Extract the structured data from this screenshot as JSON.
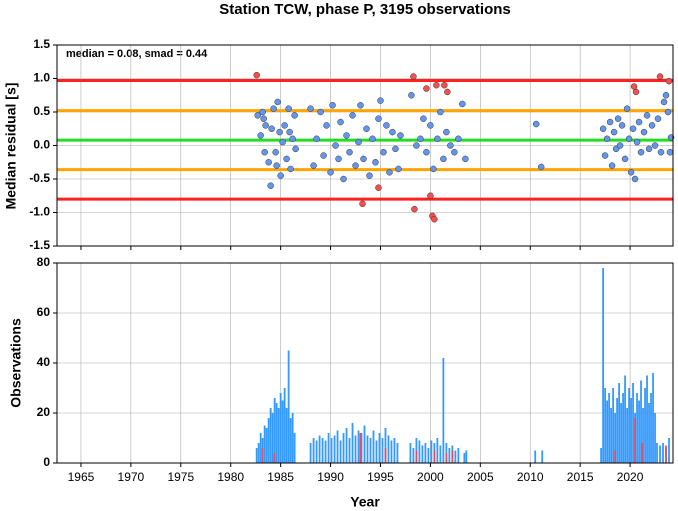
{
  "chart_data": [
    {
      "type": "scatter",
      "title": "Station TCW, phase P, 3195 observations",
      "annotation": "median = 0.08, smad = 0.44",
      "y_label": "Median residual [s]",
      "xlim": [
        1962.6,
        2024.3
      ],
      "ylim": [
        -1.5,
        1.5
      ],
      "xticks": [
        1965,
        1970,
        1975,
        1980,
        1985,
        1990,
        1995,
        2000,
        2005,
        2010,
        2015,
        2020
      ],
      "yticks": [
        -1.5,
        {
          "value": -1,
          "label": "-1.0"
        },
        -0.5,
        {
          "value": 0,
          "label": "0.0"
        },
        0.5,
        {
          "value": 1,
          "label": "1.0"
        },
        1.5
      ],
      "grid": true,
      "hlines": [
        {
          "value": 0.97,
          "color": "#ff2020"
        },
        {
          "value": 0.52,
          "color": "#ffa500"
        },
        {
          "value": 0.08,
          "color": "#22dd22"
        },
        {
          "value": -0.36,
          "color": "#ffa500"
        },
        {
          "value": -0.8,
          "color": "#ff2020"
        }
      ],
      "series": [
        {
          "color": "#6495ed",
          "x": [
            1982.7,
            1983.0,
            1983.2,
            1983.4,
            1983.5,
            1983.8,
            1984.0,
            1984.1,
            1984.3,
            1984.5,
            1984.7,
            1984.9,
            1985.0,
            1985.2,
            1985.4,
            1985.6,
            1985.8,
            1986.0,
            1986.2,
            1986.4,
            1986.5,
            1983.3,
            1984.6,
            1985.9,
            1988.0,
            1988.3,
            1988.6,
            1989.0,
            1989.3,
            1989.6,
            1990.0,
            1990.2,
            1990.5,
            1990.8,
            1991.0,
            1991.3,
            1991.6,
            1991.9,
            1992.2,
            1992.5,
            1992.8,
            1993.0,
            1993.3,
            1993.6,
            1993.9,
            1994.2,
            1994.5,
            1994.8,
            1995.0,
            1995.3,
            1995.6,
            1995.9,
            1996.2,
            1996.5,
            1996.8,
            1997.0,
            1998.1,
            1998.6,
            1999.0,
            1999.3,
            1999.6,
            2000.0,
            2000.3,
            2000.7,
            2001.0,
            2001.3,
            2001.6,
            2002.0,
            2002.4,
            2002.8,
            2003.2,
            2003.5,
            2010.6,
            2011.1,
            2017.3,
            2017.5,
            2017.7,
            2018.0,
            2018.2,
            2018.4,
            2018.6,
            2018.8,
            2019.0,
            2019.2,
            2019.5,
            2019.7,
            2019.9,
            2020.1,
            2020.3,
            2020.5,
            2020.7,
            2020.9,
            2021.1,
            2021.4,
            2021.7,
            2021.9,
            2022.2,
            2022.5,
            2022.8,
            2023.1,
            2023.4,
            2023.6,
            2023.8,
            2024.0,
            2024.1
          ],
          "y": [
            0.45,
            0.15,
            0.5,
            -0.1,
            0.3,
            -0.25,
            -0.6,
            0.25,
            0.55,
            -0.1,
            0.65,
            0.2,
            -0.45,
            0.05,
            0.3,
            -0.2,
            0.55,
            -0.35,
            0.1,
            0.45,
            -0.05,
            0.4,
            -0.3,
            0.2,
            0.55,
            -0.3,
            0.1,
            0.5,
            -0.15,
            0.3,
            -0.4,
            0.6,
            0.0,
            -0.2,
            0.35,
            -0.5,
            0.15,
            -0.1,
            0.45,
            -0.3,
            0.05,
            0.6,
            -0.2,
            0.25,
            -0.45,
            0.1,
            -0.25,
            0.4,
            0.67,
            -0.1,
            0.3,
            -0.4,
            0.2,
            -0.05,
            -0.35,
            0.15,
            0.75,
            0.0,
            0.1,
            0.4,
            -0.1,
            0.3,
            -0.35,
            0.1,
            0.5,
            -0.2,
            0.2,
            0.0,
            -0.1,
            0.1,
            0.62,
            -0.2,
            0.32,
            -0.32,
            0.25,
            -0.15,
            0.1,
            0.35,
            -0.3,
            0.2,
            -0.05,
            0.4,
            0.0,
            0.3,
            -0.2,
            0.55,
            0.1,
            -0.4,
            0.25,
            -0.5,
            0.05,
            0.35,
            -0.1,
            0.2,
            0.45,
            -0.05,
            0.3,
            0.0,
            0.4,
            -0.1,
            0.65,
            0.75,
            0.5,
            -0.1,
            0.12
          ]
        },
        {
          "color": "#f05050",
          "x": [
            1982.6,
            1993.2,
            1994.8,
            1998.3,
            1998.4,
            1999.6,
            2000.0,
            2000.2,
            2000.4,
            2000.6,
            2001.4,
            2001.7,
            2020.4,
            2020.6,
            2023.0,
            2023.9
          ],
          "y": [
            1.05,
            -0.87,
            -0.63,
            1.03,
            -0.95,
            0.85,
            -0.75,
            -1.05,
            -1.1,
            0.9,
            0.9,
            0.8,
            0.88,
            0.8,
            1.03,
            0.96
          ]
        }
      ]
    },
    {
      "type": "bar",
      "y_label": "Observations",
      "x_label": "Year",
      "xlim": [
        1962.6,
        2024.3
      ],
      "ylim": [
        0,
        80
      ],
      "xticks": [
        1965,
        1970,
        1975,
        1980,
        1985,
        1990,
        1995,
        2000,
        2005,
        2010,
        2015,
        2020
      ],
      "yticks": [
        0,
        20,
        40,
        60,
        80
      ],
      "grid": true,
      "series": [
        {
          "color": "#3399ff",
          "x": [
            1982.6,
            1982.8,
            1983.0,
            1983.2,
            1983.4,
            1983.6,
            1983.8,
            1984.0,
            1984.2,
            1984.4,
            1984.6,
            1984.8,
            1985.0,
            1985.2,
            1985.4,
            1985.6,
            1985.8,
            1986.0,
            1986.2,
            1986.4,
            1988.0,
            1988.3,
            1988.6,
            1988.9,
            1989.2,
            1989.5,
            1989.8,
            1990.1,
            1990.4,
            1990.7,
            1991.0,
            1991.3,
            1991.6,
            1991.9,
            1992.2,
            1992.5,
            1992.8,
            1993.1,
            1993.4,
            1993.7,
            1994.0,
            1994.3,
            1994.6,
            1994.9,
            1995.2,
            1995.5,
            1995.8,
            1996.1,
            1996.4,
            1996.7,
            1998.0,
            1998.3,
            1998.6,
            1998.9,
            1999.2,
            1999.5,
            1999.8,
            2000.1,
            2000.4,
            2000.7,
            2001.0,
            2001.3,
            2001.6,
            2001.9,
            2002.2,
            2002.5,
            2002.8,
            2003.4,
            2003.6,
            2010.5,
            2011.2,
            2017.1,
            2017.3,
            2017.5,
            2017.7,
            2017.9,
            2018.1,
            2018.3,
            2018.5,
            2018.7,
            2018.9,
            2019.1,
            2019.3,
            2019.5,
            2019.7,
            2019.9,
            2020.1,
            2020.3,
            2020.5,
            2020.7,
            2020.9,
            2021.1,
            2021.3,
            2021.5,
            2021.7,
            2021.9,
            2022.1,
            2022.3,
            2022.5,
            2022.7,
            2023.0,
            2023.3,
            2023.6,
            2023.9
          ],
          "values": [
            6,
            8,
            12,
            10,
            15,
            14,
            18,
            22,
            20,
            26,
            24,
            22,
            28,
            25,
            30,
            22,
            45,
            18,
            20,
            12,
            8,
            10,
            9,
            11,
            10,
            9,
            12,
            10,
            11,
            13,
            9,
            12,
            14,
            10,
            16,
            11,
            13,
            12,
            15,
            11,
            10,
            13,
            9,
            12,
            10,
            14,
            11,
            9,
            10,
            8,
            8,
            6,
            10,
            9,
            7,
            8,
            6,
            9,
            8,
            10,
            7,
            42,
            8,
            6,
            7,
            5,
            6,
            4,
            5,
            5,
            5,
            6,
            78,
            30,
            25,
            28,
            22,
            30,
            20,
            26,
            32,
            24,
            28,
            35,
            22,
            30,
            26,
            32,
            20,
            28,
            25,
            33,
            22,
            30,
            35,
            24,
            28,
            36,
            20,
            8,
            7,
            8,
            6,
            10
          ]
        },
        {
          "color": "#e05060",
          "x": [
            1983.2,
            1984.4,
            1993.0,
            1995.5,
            1998.6,
            2000.4,
            2001.6,
            2002.2,
            2018.5,
            2020.5,
            2021.2,
            2023.6
          ],
          "values": [
            6,
            4,
            12,
            6,
            5,
            5,
            4,
            5,
            5,
            18,
            8,
            7
          ]
        }
      ]
    }
  ]
}
